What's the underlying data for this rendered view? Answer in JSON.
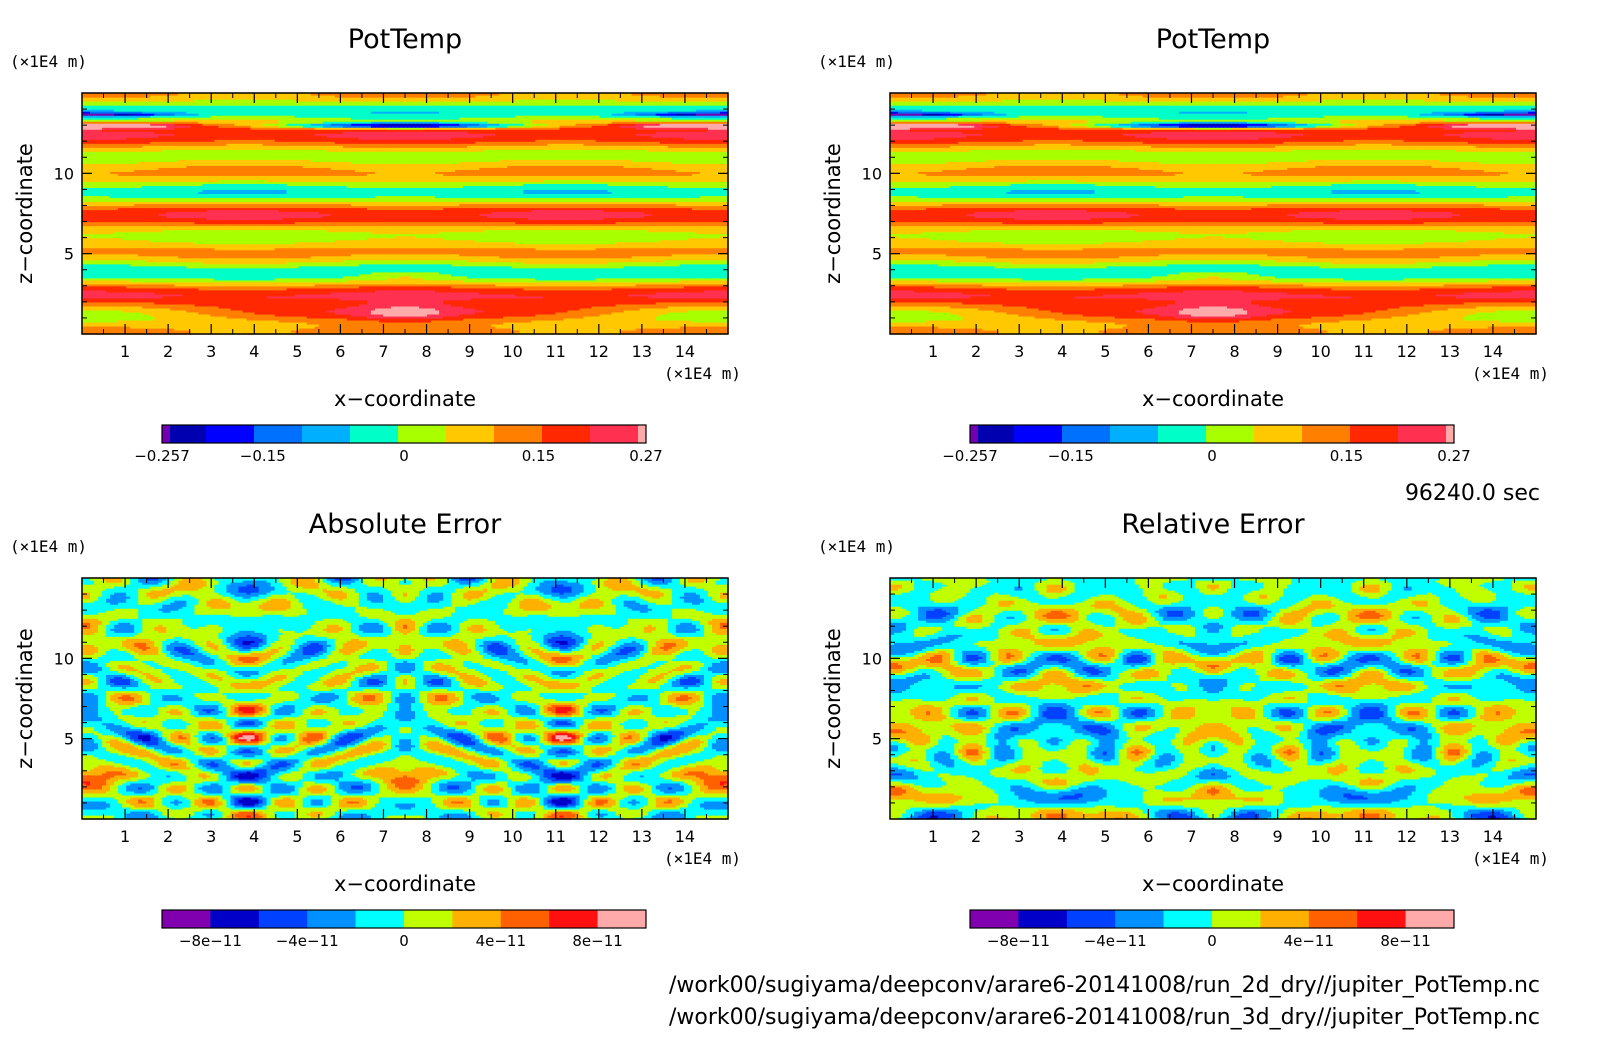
{
  "footer": {
    "time_label": "96240.0 sec",
    "file_paths": [
      "/work00/sugiyama/deepconv/arare6-20141008/run_2d_dry//jupiter_PotTemp.nc",
      "/work00/sugiyama/deepconv/arare6-20141008/run_3d_dry//jupiter_PotTemp.nc"
    ]
  },
  "chart_data": [
    {
      "type": "heatmap",
      "title": "PotTemp",
      "xlabel": "x−coordinate",
      "ylabel": "z−coordinate",
      "x_unit": "(×1E4 m)",
      "y_unit": "(×1E4 m)",
      "xlim": [
        0,
        15
      ],
      "ylim": [
        0,
        15
      ],
      "x_ticks": [
        1,
        2,
        3,
        4,
        5,
        6,
        7,
        8,
        9,
        10,
        11,
        12,
        13,
        14
      ],
      "y_ticks": [
        5,
        10
      ],
      "colorbar": {
        "tick_values": [
          -0.257,
          -0.15,
          0,
          0.15,
          0.27
        ],
        "tick_labels": [
          "−0.257",
          "−0.15",
          "0",
          "0.15",
          "0.27"
        ],
        "range": [
          -0.257,
          0.27
        ],
        "colors": [
          "#7000b0",
          "#0000b0",
          "#0000ff",
          "#0070ff",
          "#00b0ff",
          "#00ffc8",
          "#a8ff00",
          "#ffc800",
          "#ff8000",
          "#ff2800",
          "#ff3050",
          "#ffaaaa"
        ]
      },
      "features": [
        {
          "x": 7.5,
          "z": 1.3,
          "sx": 4.2,
          "sz": 0.55,
          "v": 0.17
        },
        {
          "x": 7.5,
          "z": 1.4,
          "sx": 1.0,
          "sz": 0.6,
          "v": 0.08
        },
        {
          "x": 7.5,
          "z": 3.7,
          "sx": 1.1,
          "sz": 0.3,
          "v": 0.06
        },
        {
          "x": 7.5,
          "z": 13.0,
          "sx": 2.8,
          "sz": 0.18,
          "v": -0.3
        },
        {
          "x": 0.0,
          "z": 13.7,
          "sx": 2.0,
          "sz": 0.12,
          "v": -0.2
        },
        {
          "x": 15.0,
          "z": 13.7,
          "sx": 2.0,
          "sz": 0.12,
          "v": -0.2
        },
        {
          "x": 0.0,
          "z": 13.0,
          "sx": 2.3,
          "sz": 0.18,
          "v": 0.25
        },
        {
          "x": 15.0,
          "z": 13.0,
          "sx": 2.3,
          "sz": 0.18,
          "v": 0.25
        }
      ]
    },
    {
      "type": "heatmap",
      "title": "PotTemp",
      "xlabel": "x−coordinate",
      "ylabel": "z−coordinate",
      "x_unit": "(×1E4 m)",
      "y_unit": "(×1E4 m)",
      "xlim": [
        0,
        15
      ],
      "ylim": [
        0,
        15
      ],
      "x_ticks": [
        1,
        2,
        3,
        4,
        5,
        6,
        7,
        8,
        9,
        10,
        11,
        12,
        13,
        14
      ],
      "y_ticks": [
        5,
        10
      ],
      "colorbar": {
        "tick_values": [
          -0.257,
          -0.15,
          0,
          0.15,
          0.27
        ],
        "tick_labels": [
          "−0.257",
          "−0.15",
          "0",
          "0.15",
          "0.27"
        ],
        "range": [
          -0.257,
          0.27
        ],
        "colors": [
          "#7000b0",
          "#0000b0",
          "#0000ff",
          "#0070ff",
          "#00b0ff",
          "#00ffc8",
          "#a8ff00",
          "#ffc800",
          "#ff8000",
          "#ff2800",
          "#ff3050",
          "#ffaaaa"
        ]
      },
      "features": [
        {
          "x": 7.5,
          "z": 1.3,
          "sx": 4.2,
          "sz": 0.55,
          "v": 0.17
        },
        {
          "x": 7.5,
          "z": 1.4,
          "sx": 1.0,
          "sz": 0.6,
          "v": 0.08
        },
        {
          "x": 7.5,
          "z": 3.7,
          "sx": 1.1,
          "sz": 0.3,
          "v": 0.06
        },
        {
          "x": 7.5,
          "z": 13.0,
          "sx": 2.8,
          "sz": 0.18,
          "v": -0.3
        },
        {
          "x": 0.0,
          "z": 13.7,
          "sx": 2.0,
          "sz": 0.12,
          "v": -0.2
        },
        {
          "x": 15.0,
          "z": 13.7,
          "sx": 2.0,
          "sz": 0.12,
          "v": -0.2
        },
        {
          "x": 0.0,
          "z": 13.0,
          "sx": 2.3,
          "sz": 0.18,
          "v": 0.25
        },
        {
          "x": 15.0,
          "z": 13.0,
          "sx": 2.3,
          "sz": 0.18,
          "v": 0.25
        }
      ]
    },
    {
      "type": "heatmap",
      "title": "Absolute Error",
      "xlabel": "x−coordinate",
      "ylabel": "z−coordinate",
      "x_unit": "(×1E4 m)",
      "y_unit": "(×1E4 m)",
      "xlim": [
        0,
        15
      ],
      "ylim": [
        0,
        15
      ],
      "x_ticks": [
        1,
        2,
        3,
        4,
        5,
        6,
        7,
        8,
        9,
        10,
        11,
        12,
        13,
        14
      ],
      "y_ticks": [
        5,
        10
      ],
      "colorbar": {
        "tick_values": [
          -8e-11,
          -4e-11,
          0,
          4e-11,
          8e-11
        ],
        "tick_labels": [
          "−8e−11",
          "−4e−11",
          "0",
          "4e−11",
          "8e−11"
        ],
        "range": [
          -1e-10,
          1e-10
        ],
        "colors": [
          "#8000b0",
          "#0000c8",
          "#0040ff",
          "#0090ff",
          "#00ffff",
          "#c0ff00",
          "#ffb000",
          "#ff6000",
          "#ff1010",
          "#ffaaaa"
        ]
      },
      "noise_seed": 7
    },
    {
      "type": "heatmap",
      "title": "Relative Error",
      "xlabel": "x−coordinate",
      "ylabel": "z−coordinate",
      "x_unit": "(×1E4 m)",
      "y_unit": "(×1E4 m)",
      "xlim": [
        0,
        15
      ],
      "ylim": [
        0,
        15
      ],
      "x_ticks": [
        1,
        2,
        3,
        4,
        5,
        6,
        7,
        8,
        9,
        10,
        11,
        12,
        13,
        14
      ],
      "y_ticks": [
        5,
        10
      ],
      "colorbar": {
        "tick_values": [
          -8e-11,
          -4e-11,
          0,
          4e-11,
          8e-11
        ],
        "tick_labels": [
          "−8e−11",
          "−4e−11",
          "0",
          "4e−11",
          "8e−11"
        ],
        "range": [
          -1e-10,
          1e-10
        ],
        "colors": [
          "#8000b0",
          "#0000c8",
          "#0040ff",
          "#0090ff",
          "#00ffff",
          "#c0ff00",
          "#ffb000",
          "#ff6000",
          "#ff1010",
          "#ffaaaa"
        ]
      },
      "noise_seed": 19
    }
  ]
}
